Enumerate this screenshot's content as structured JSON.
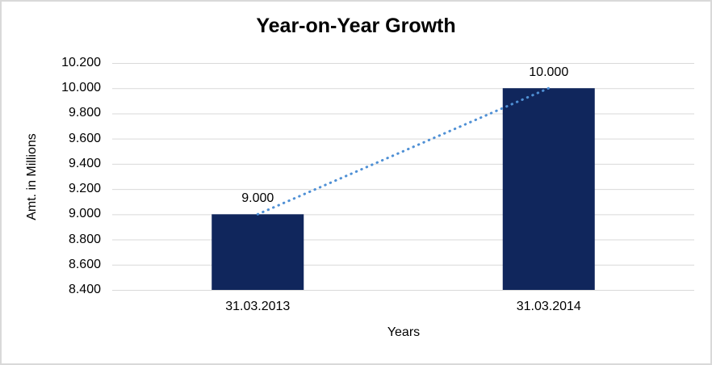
{
  "chart_data": {
    "type": "bar",
    "title": "Year-on-Year Growth",
    "xlabel": "Years",
    "ylabel": "Amt. in Millions",
    "categories": [
      "31.03.2013",
      "31.03.2014"
    ],
    "values": [
      9.0,
      10.0
    ],
    "data_labels": [
      "9.000",
      "10.000"
    ],
    "y_ticks": [
      "10.200",
      "10.000",
      "9.800",
      "9.600",
      "9.400",
      "9.200",
      "9.000",
      "8.800",
      "8.600",
      "8.400"
    ],
    "ylim": [
      8.4,
      10.2
    ],
    "y_step": 0.2,
    "grid": true,
    "legend": "none",
    "trendline": {
      "style": "dotted",
      "connects": [
        "top of 31.03.2013 bar",
        "top of 31.03.2014 bar"
      ],
      "from_value": 9.0,
      "to_value": 10.0
    },
    "colors": {
      "bar": "#10265c",
      "trendline": "#4f90d5",
      "gridline": "#d9d9d9",
      "text": "#000000",
      "background": "#ffffff",
      "border": "#d9d9d9"
    }
  }
}
